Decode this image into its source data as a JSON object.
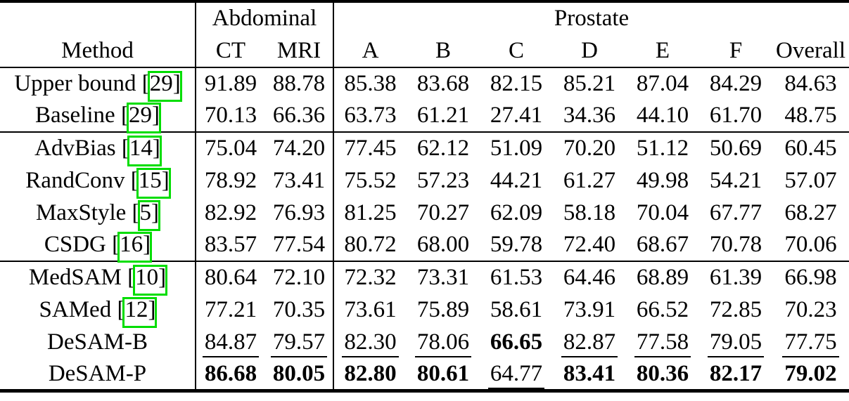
{
  "table": {
    "groups": [
      "Abdominal",
      "Prostate"
    ],
    "columns": [
      "Method",
      "CT",
      "MRI",
      "A",
      "B",
      "C",
      "D",
      "E",
      "F",
      "Overall"
    ],
    "citation_border_color": "#00dd00",
    "text_color": "#000000",
    "sections": [
      {
        "rows": [
          {
            "method": "Upper bound",
            "cite": "29",
            "values": [
              "91.89",
              "88.78",
              "85.38",
              "83.68",
              "82.15",
              "85.21",
              "87.04",
              "84.29",
              "84.63"
            ],
            "bold": [],
            "underline": []
          },
          {
            "method": "Baseline",
            "cite": "29",
            "values": [
              "70.13",
              "66.36",
              "63.73",
              "61.21",
              "27.41",
              "34.36",
              "44.10",
              "61.70",
              "48.75"
            ],
            "bold": [],
            "underline": []
          }
        ]
      },
      {
        "rows": [
          {
            "method": "AdvBias",
            "cite": "14",
            "values": [
              "75.04",
              "74.20",
              "77.45",
              "62.12",
              "51.09",
              "70.20",
              "51.12",
              "50.69",
              "60.45"
            ],
            "bold": [],
            "underline": []
          },
          {
            "method": "RandConv",
            "cite": "15",
            "values": [
              "78.92",
              "73.41",
              "75.52",
              "57.23",
              "44.21",
              "61.27",
              "49.98",
              "54.21",
              "57.07"
            ],
            "bold": [],
            "underline": []
          },
          {
            "method": "MaxStyle",
            "cite": "5",
            "values": [
              "82.92",
              "76.93",
              "81.25",
              "70.27",
              "62.09",
              "58.18",
              "70.04",
              "67.77",
              "68.27"
            ],
            "bold": [],
            "underline": []
          },
          {
            "method": "CSDG",
            "cite": "16",
            "values": [
              "83.57",
              "77.54",
              "80.72",
              "68.00",
              "59.78",
              "72.40",
              "68.67",
              "70.78",
              "70.06"
            ],
            "bold": [],
            "underline": []
          }
        ]
      },
      {
        "rows": [
          {
            "method": "MedSAM",
            "cite": "10",
            "values": [
              "80.64",
              "72.10",
              "72.32",
              "73.31",
              "61.53",
              "64.46",
              "68.89",
              "61.39",
              "66.98"
            ],
            "bold": [],
            "underline": []
          },
          {
            "method": "SAMed",
            "cite": "12",
            "values": [
              "77.21",
              "70.35",
              "73.61",
              "75.89",
              "58.61",
              "73.91",
              "66.52",
              "72.85",
              "70.23"
            ],
            "bold": [],
            "underline": []
          },
          {
            "method": "DeSAM-B",
            "cite": null,
            "values": [
              "84.87",
              "79.57",
              "82.30",
              "78.06",
              "66.65",
              "82.87",
              "77.58",
              "79.05",
              "77.75"
            ],
            "bold": [
              4
            ],
            "underline": [
              0,
              1,
              2,
              3,
              5,
              6,
              7,
              8
            ]
          },
          {
            "method": "DeSAM-P",
            "cite": null,
            "values": [
              "86.68",
              "80.05",
              "82.80",
              "80.61",
              "64.77",
              "83.41",
              "80.36",
              "82.17",
              "79.02"
            ],
            "bold": [
              0,
              1,
              2,
              3,
              5,
              6,
              7,
              8
            ],
            "underline": [
              4
            ]
          }
        ]
      }
    ]
  }
}
